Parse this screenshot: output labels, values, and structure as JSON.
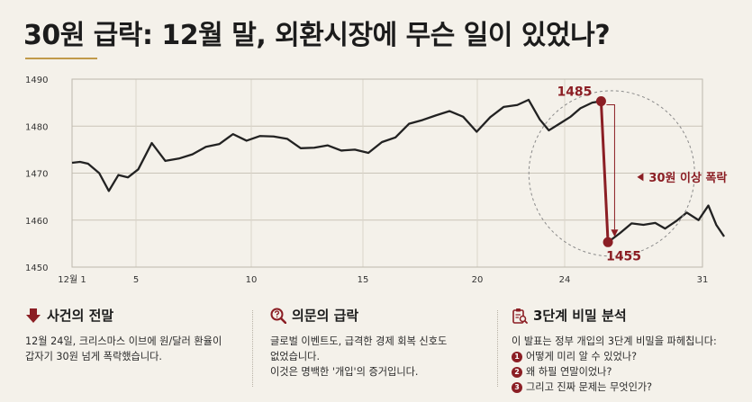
{
  "title": "30원 급락: 12월 말, 외환시장에 무슨 일이 있었나?",
  "colors": {
    "line": "#222222",
    "accent": "#8b1e24",
    "rule": "#c19a4a",
    "background": "#f4f1ea"
  },
  "chart_data": {
    "type": "line",
    "title": "",
    "xlabel": "",
    "ylabel": "",
    "xlim": [
      1,
      31
    ],
    "ylim": [
      1450,
      1490
    ],
    "x_ticks": [
      {
        "value": 1,
        "label": "12월 1"
      },
      {
        "value": 5,
        "label": "5"
      },
      {
        "value": 10,
        "label": "10"
      },
      {
        "value": 15,
        "label": "15"
      },
      {
        "value": 20,
        "label": "20"
      },
      {
        "value": 24,
        "label": "24"
      },
      {
        "value": 31,
        "label": "31"
      }
    ],
    "y_ticks": [
      1450,
      1460,
      1470,
      1480,
      1490
    ],
    "grid": true,
    "series": [
      {
        "points": [
          [
            1,
            1472.2
          ],
          [
            1.5,
            1472.4
          ],
          [
            2,
            1472
          ],
          [
            2.7,
            1470
          ],
          [
            3.3,
            1466.2
          ],
          [
            3.9,
            1469.6
          ],
          [
            4.5,
            1469.1
          ],
          [
            5.1,
            1470.8
          ],
          [
            5.7,
            1476.4
          ],
          [
            6.3,
            1472.6
          ],
          [
            6.9,
            1473.1
          ],
          [
            7.5,
            1474
          ],
          [
            8.1,
            1475.6
          ],
          [
            8.7,
            1476.2
          ],
          [
            9.3,
            1478.3
          ],
          [
            9.9,
            1476.9
          ],
          [
            10.5,
            1477.9
          ],
          [
            11.1,
            1477.8
          ],
          [
            11.7,
            1477.3
          ],
          [
            12.3,
            1475.3
          ],
          [
            12.9,
            1475.4
          ],
          [
            13.5,
            1475.9
          ],
          [
            14.1,
            1474.8
          ],
          [
            14.7,
            1475
          ],
          [
            15.3,
            1474.3
          ],
          [
            15.9,
            1476.6
          ],
          [
            16.5,
            1477.6
          ],
          [
            17.1,
            1480.5
          ],
          [
            17.7,
            1481.3
          ],
          [
            18.3,
            1482.3
          ],
          [
            18.9,
            1483.2
          ],
          [
            19.5,
            1482
          ],
          [
            20.1,
            1478.8
          ],
          [
            20.7,
            1481.9
          ],
          [
            21.3,
            1484.1
          ],
          [
            21.9,
            1484.5
          ],
          [
            22.4,
            1485.6
          ],
          [
            22.9,
            1481.4
          ],
          [
            23.3,
            1479.1
          ],
          [
            23.8,
            1480.6
          ],
          [
            24.3,
            1482
          ],
          [
            24.8,
            1483.8
          ],
          [
            25.4,
            1485
          ],
          [
            25.85,
            1485.3
          ],
          [
            26.2,
            1455.3
          ],
          [
            26.8,
            1457.2
          ],
          [
            27.4,
            1459.3
          ],
          [
            28,
            1459
          ],
          [
            28.6,
            1459.4
          ],
          [
            29.1,
            1458.2
          ],
          [
            29.7,
            1459.9
          ],
          [
            30.2,
            1461.6
          ],
          [
            30.8,
            1460
          ],
          [
            31.3,
            1463.1
          ],
          [
            31.7,
            1459
          ],
          [
            32.1,
            1456.5
          ]
        ]
      }
    ],
    "annotations": [
      {
        "label": "1485",
        "x": 25.85,
        "y": 1485.3
      },
      {
        "label": "1455",
        "x": 26.2,
        "y": 1455.3
      },
      {
        "label": "30원 이상 폭락"
      }
    ]
  },
  "panels": [
    {
      "icon": "down-arrow-icon",
      "heading": "사건의 전말",
      "lines": [
        "12월 24일, 크리스마스 이브에 원/달러 환율이",
        "갑자기 30원 넘게 폭락했습니다."
      ]
    },
    {
      "icon": "magnifier-question-icon",
      "heading": "의문의 급락",
      "lines": [
        "글로벌 이벤트도, 급격한 경제 회복 신호도",
        "없었습니다.",
        "이것은 명백한 '개입'의 증거입니다."
      ]
    },
    {
      "icon": "clipboard-search-icon",
      "heading": "3단계 비밀 분석",
      "intro": "이 발표는 정부 개입의 3단계 비밀을 파헤칩니다:",
      "questions": [
        {
          "n": "1",
          "text": "어떻게 미리 알 수 있었나?"
        },
        {
          "n": "2",
          "text": "왜 하필 연말이었나?"
        },
        {
          "n": "3",
          "text": "그리고 진짜 문제는 무엇인가?"
        }
      ]
    }
  ]
}
